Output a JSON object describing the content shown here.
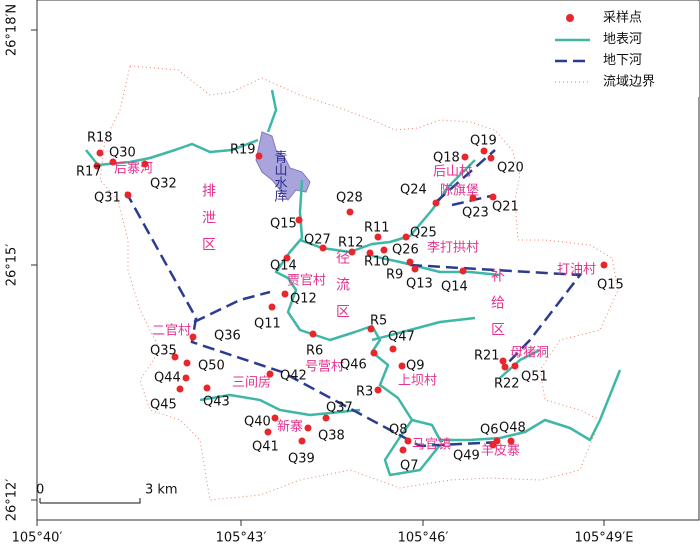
{
  "axes": {
    "x_labels": [
      "105°40′",
      "105°43′",
      "105°46′",
      "105°49′E"
    ],
    "y_labels": [
      "26°18′N",
      "26°15′",
      "26°12′"
    ]
  },
  "legend": [
    "采样点",
    "地表河",
    "地下河",
    "流域边界"
  ],
  "scale_bar": {
    "start": "0",
    "end": "3 km"
  },
  "reservoir": "青山水库",
  "regions": [
    "排泄区",
    "径流区",
    "补给区"
  ],
  "places": [
    "后寨河",
    "陈旗堡",
    "后山村",
    "李打拱村",
    "打油村",
    "贾官村",
    "号营村",
    "上坝村",
    "二官村",
    "三间房",
    "新寨",
    "马官镇",
    "羊皮寨",
    "母猪洞"
  ],
  "samples": [
    "R18",
    "R17",
    "Q30",
    "Q31",
    "Q32",
    "R19",
    "Q15",
    "Q28",
    "Q27",
    "R12",
    "R11",
    "Q25",
    "Q26",
    "R10",
    "R9",
    "Q13",
    "Q14",
    "Q24",
    "Q18",
    "Q19",
    "Q20",
    "Q21",
    "Q23",
    "Q14",
    "Q12",
    "Q11",
    "R6",
    "R5",
    "Q47",
    "Q46",
    "Q9",
    "R3",
    "Q36",
    "Q35",
    "Q50",
    "Q44",
    "Q45",
    "Q43",
    "Q42",
    "Q37",
    "Q40",
    "Q41",
    "Q38",
    "Q39",
    "Q8",
    "Q7",
    "Q49",
    "Q6",
    "Q48",
    "R21",
    "R22",
    "Q51",
    "Q15"
  ]
}
